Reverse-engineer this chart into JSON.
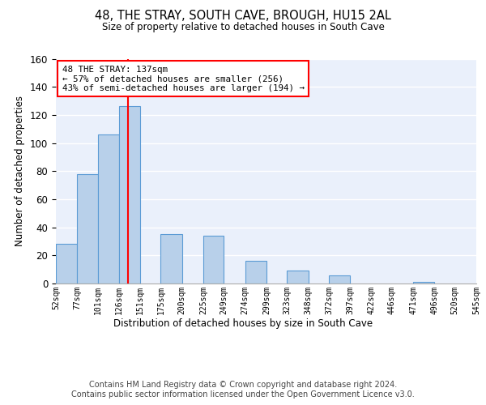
{
  "title": "48, THE STRAY, SOUTH CAVE, BROUGH, HU15 2AL",
  "subtitle": "Size of property relative to detached houses in South Cave",
  "xlabel": "Distribution of detached houses by size in South Cave",
  "ylabel": "Number of detached properties",
  "bar_heights": [
    28,
    78,
    106,
    126,
    35,
    34,
    16,
    9,
    6,
    1
  ],
  "bar_bin_indices": [
    0,
    1,
    2,
    3,
    5,
    7,
    9,
    11,
    13,
    17
  ],
  "bin_edges": [
    52,
    77,
    101,
    126,
    151,
    175,
    200,
    225,
    249,
    274,
    299,
    323,
    348,
    372,
    397,
    422,
    446,
    471,
    496,
    520,
    545
  ],
  "tick_labels": [
    "52sqm",
    "77sqm",
    "101sqm",
    "126sqm",
    "151sqm",
    "175sqm",
    "200sqm",
    "225sqm",
    "249sqm",
    "274sqm",
    "299sqm",
    "323sqm",
    "348sqm",
    "372sqm",
    "397sqm",
    "422sqm",
    "446sqm",
    "471sqm",
    "496sqm",
    "520sqm",
    "545sqm"
  ],
  "bar_color": "#b8d0ea",
  "bar_edge_color": "#5b9bd5",
  "vline_x": 137,
  "vline_color": "red",
  "annotation_text": "48 THE STRAY: 137sqm\n← 57% of detached houses are smaller (256)\n43% of semi-detached houses are larger (194) →",
  "annotation_box_color": "white",
  "annotation_box_edge_color": "red",
  "footer_text": "Contains HM Land Registry data © Crown copyright and database right 2024.\nContains public sector information licensed under the Open Government Licence v3.0.",
  "ylim": [
    0,
    160
  ],
  "yticks": [
    0,
    20,
    40,
    60,
    80,
    100,
    120,
    140,
    160
  ],
  "bg_color": "#eaf0fb",
  "grid_color": "white"
}
